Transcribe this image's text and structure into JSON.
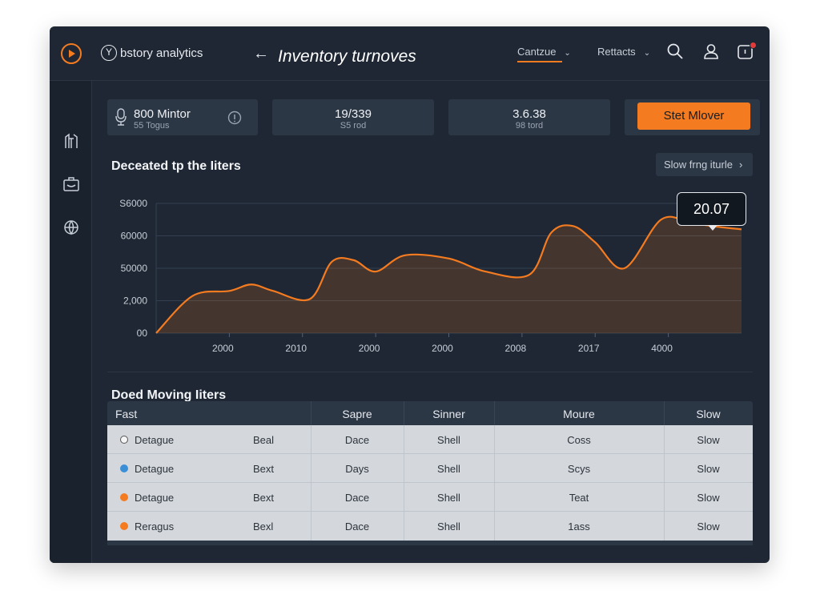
{
  "header": {
    "brand": "bstory analytics",
    "brand_mark": "Y",
    "title": "Inventory turnoves",
    "nav": [
      {
        "label": "Cantzue",
        "active": true
      },
      {
        "label": "Rettacts",
        "active": false
      }
    ],
    "icons": [
      "play-logo-icon",
      "back-arrow-icon",
      "search-icon",
      "user-icon",
      "notification-icon"
    ],
    "accent_color": "#f47b20"
  },
  "sidebar": {
    "icons": [
      "inventory-icon",
      "briefcase-icon",
      "globe-icon"
    ]
  },
  "stats": [
    {
      "value": "800 Mintor",
      "sub": "55 Togus"
    },
    {
      "value": "19/339",
      "sub": "S5 rod"
    },
    {
      "value": "3.6.38",
      "sub": "98 tord"
    }
  ],
  "cta_label": "Stet Mlover",
  "chart_section": {
    "title": "Deceated tp the Iiters",
    "filter_label": "Slow frng iturle",
    "tooltip_value": "20.07"
  },
  "chart_data": {
    "type": "area",
    "title": "Deceated tp the Iiters",
    "xlabel": "",
    "ylabel": "",
    "y_tick_labels": [
      "00",
      "2,000",
      "50000",
      "60000",
      "S6000"
    ],
    "x_tick_labels": [
      "2000",
      "2010",
      "2000",
      "2000",
      "2008",
      "2017",
      "4000"
    ],
    "ylim": [
      0,
      4
    ],
    "series": [
      {
        "x": [
          0,
          0.5,
          1.0,
          1.3,
          1.6,
          2.1,
          2.4,
          2.7,
          3.0,
          3.4,
          4.0,
          4.5,
          5.1,
          5.4,
          5.7,
          6.0,
          6.4,
          6.9,
          7.3,
          7.6,
          8.0
        ],
        "values": [
          0.0,
          1.15,
          1.3,
          1.5,
          1.3,
          1.05,
          2.2,
          2.25,
          1.9,
          2.4,
          2.3,
          1.9,
          1.8,
          3.1,
          3.3,
          2.8,
          2.0,
          3.5,
          3.4,
          3.3,
          3.2
        ]
      }
    ],
    "grid": true,
    "legend": "none",
    "line_color": "#f47b20"
  },
  "table": {
    "title": "Doed Moving Iiters",
    "columns": [
      "Fast",
      "Sapre",
      "Sinner",
      "Moure",
      "Slow"
    ],
    "rows": [
      {
        "name": "Detague",
        "col1": "Beal",
        "col2": "Dace",
        "col3": "Shell",
        "col4": "Coss",
        "col5": "Slow",
        "dot": "#f5f5f5"
      },
      {
        "name": "Detague",
        "col1": "Bext",
        "col2": "Days",
        "col3": "Shell",
        "col4": "Scys",
        "col5": "Slow",
        "dot": "#3b8fd6"
      },
      {
        "name": "Detague",
        "col1": "Bext",
        "col2": "Dace",
        "col3": "Shell",
        "col4": "Teat",
        "col5": "Slow",
        "dot": "#f47b20"
      },
      {
        "name": "Reragus",
        "col1": "Bexl",
        "col2": "Dace",
        "col3": "Shell",
        "col4": "1ass",
        "col5": "Slow",
        "dot": "#f47b20"
      }
    ]
  }
}
